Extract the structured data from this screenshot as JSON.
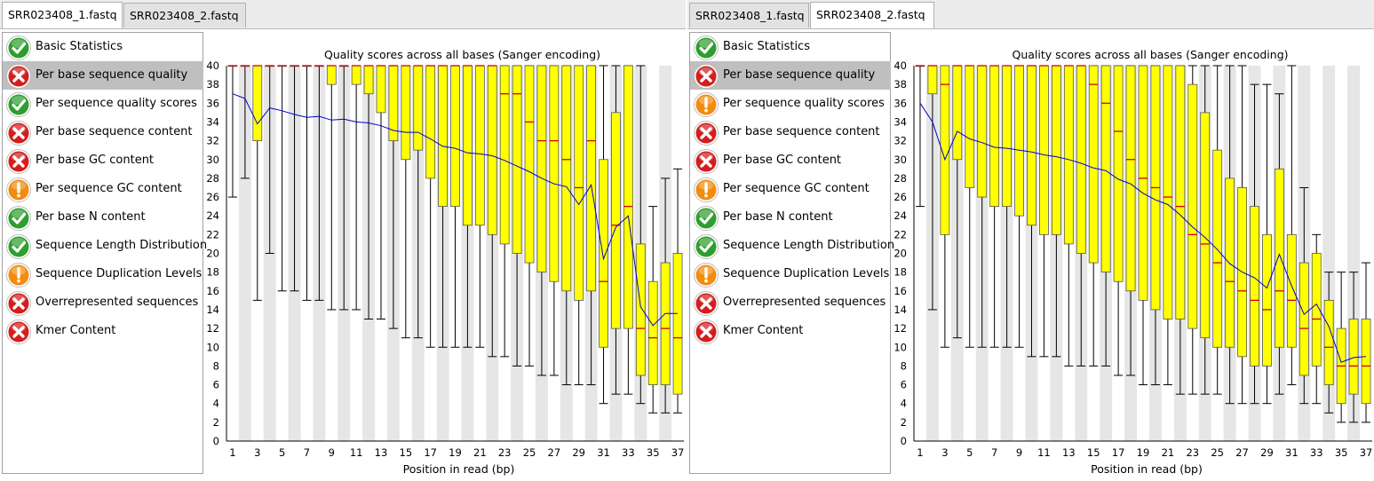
{
  "panels": [
    {
      "tabs": [
        {
          "label": "SRR023408_1.fastq",
          "active": true
        },
        {
          "label": "SRR023408_2.fastq",
          "active": false
        }
      ],
      "modules": [
        {
          "label": "Basic Statistics",
          "status": "pass",
          "selected": false
        },
        {
          "label": "Per base sequence quality",
          "status": "fail",
          "selected": true
        },
        {
          "label": "Per sequence quality scores",
          "status": "pass",
          "selected": false
        },
        {
          "label": "Per base sequence content",
          "status": "fail",
          "selected": false
        },
        {
          "label": "Per base GC content",
          "status": "fail",
          "selected": false
        },
        {
          "label": "Per sequence GC content",
          "status": "warn",
          "selected": false
        },
        {
          "label": "Per base N content",
          "status": "pass",
          "selected": false
        },
        {
          "label": "Sequence Length Distribution",
          "status": "pass",
          "selected": false
        },
        {
          "label": "Sequence Duplication Levels",
          "status": "warn",
          "selected": false
        },
        {
          "label": "Overrepresented sequences",
          "status": "fail",
          "selected": false
        },
        {
          "label": "Kmer Content",
          "status": "fail",
          "selected": false
        }
      ]
    },
    {
      "tabs": [
        {
          "label": "SRR023408_1.fastq",
          "active": false
        },
        {
          "label": "SRR023408_2.fastq",
          "active": true
        }
      ],
      "modules": [
        {
          "label": "Basic Statistics",
          "status": "pass",
          "selected": false
        },
        {
          "label": "Per base sequence quality",
          "status": "fail",
          "selected": true
        },
        {
          "label": "Per sequence quality scores",
          "status": "warn",
          "selected": false
        },
        {
          "label": "Per base sequence content",
          "status": "fail",
          "selected": false
        },
        {
          "label": "Per base GC content",
          "status": "fail",
          "selected": false
        },
        {
          "label": "Per sequence GC content",
          "status": "warn",
          "selected": false
        },
        {
          "label": "Per base N content",
          "status": "pass",
          "selected": false
        },
        {
          "label": "Sequence Length Distribution",
          "status": "pass",
          "selected": false
        },
        {
          "label": "Sequence Duplication Levels",
          "status": "warn",
          "selected": false
        },
        {
          "label": "Overrepresented sequences",
          "status": "fail",
          "selected": false
        },
        {
          "label": "Kmer Content",
          "status": "fail",
          "selected": false
        }
      ]
    }
  ],
  "status_colors": {
    "pass": "#2e9e2e",
    "fail": "#d41e1e",
    "warn": "#f28c0f"
  },
  "chart_colors": {
    "box": "#ffff00",
    "box_stroke": "#555555",
    "median": "#d40000",
    "mean": "#0000cc",
    "band": "#e6e6e6",
    "whisker": "#000000"
  },
  "chart_data": [
    {
      "type": "box",
      "title": "Quality scores across all bases (Sanger encoding)",
      "xlabel": "Position in read (bp)",
      "ylabel": "",
      "ylim": [
        0,
        40
      ],
      "yticks": [
        0,
        2,
        4,
        6,
        8,
        10,
        12,
        14,
        16,
        18,
        20,
        22,
        24,
        26,
        28,
        30,
        32,
        34,
        36,
        38,
        40
      ],
      "xticks": [
        1,
        3,
        5,
        7,
        9,
        11,
        13,
        15,
        17,
        19,
        21,
        23,
        25,
        27,
        29,
        31,
        33,
        35,
        37
      ],
      "positions": [
        1,
        2,
        3,
        4,
        5,
        6,
        7,
        8,
        9,
        10,
        11,
        12,
        13,
        14,
        15,
        16,
        17,
        18,
        19,
        20,
        21,
        22,
        23,
        24,
        25,
        26,
        27,
        28,
        29,
        30,
        31,
        32,
        33,
        34,
        35,
        36,
        37
      ],
      "q1": [
        40,
        40,
        32,
        40,
        40,
        40,
        40,
        40,
        38,
        40,
        38,
        37,
        35,
        32,
        30,
        31,
        28,
        25,
        25,
        23,
        23,
        22,
        21,
        20,
        19,
        18,
        17,
        16,
        15,
        16,
        10,
        12,
        12,
        7,
        6,
        6,
        5
      ],
      "q3": [
        40,
        40,
        40,
        40,
        40,
        40,
        40,
        40,
        40,
        40,
        40,
        40,
        40,
        40,
        40,
        40,
        40,
        40,
        40,
        40,
        40,
        40,
        40,
        40,
        40,
        40,
        40,
        40,
        40,
        40,
        30,
        35,
        40,
        21,
        17,
        19,
        20
      ],
      "median": [
        40,
        40,
        40,
        40,
        40,
        40,
        40,
        40,
        40,
        40,
        40,
        40,
        40,
        40,
        40,
        40,
        40,
        40,
        40,
        40,
        40,
        40,
        37,
        37,
        34,
        32,
        32,
        30,
        27,
        32,
        17,
        23,
        25,
        12,
        11,
        12,
        11
      ],
      "low": [
        26,
        28,
        15,
        20,
        16,
        16,
        15,
        15,
        14,
        14,
        14,
        13,
        13,
        12,
        11,
        11,
        10,
        10,
        10,
        10,
        10,
        9,
        9,
        8,
        8,
        7,
        7,
        6,
        6,
        6,
        4,
        5,
        5,
        4,
        3,
        3,
        3
      ],
      "high": [
        40,
        40,
        40,
        40,
        40,
        40,
        40,
        40,
        40,
        40,
        40,
        40,
        40,
        40,
        40,
        40,
        40,
        40,
        40,
        40,
        40,
        40,
        40,
        40,
        40,
        40,
        40,
        40,
        40,
        40,
        40,
        40,
        40,
        40,
        25,
        28,
        29
      ],
      "mean": [
        37,
        36.5,
        33.8,
        35.5,
        35.2,
        34.8,
        34.5,
        34.6,
        34.2,
        34.3,
        34.0,
        33.9,
        33.6,
        33.1,
        32.9,
        32.9,
        32.2,
        31.4,
        31.2,
        30.7,
        30.6,
        30.4,
        29.9,
        29.3,
        28.7,
        28.0,
        27.4,
        27.1,
        25.2,
        27.3,
        19.4,
        22.8,
        24.0,
        14.3,
        12.3,
        13.6,
        13.6
      ]
    },
    {
      "type": "box",
      "title": "Quality scores across all bases (Sanger encoding)",
      "xlabel": "Position in read (bp)",
      "ylabel": "",
      "ylim": [
        0,
        40
      ],
      "yticks": [
        0,
        2,
        4,
        6,
        8,
        10,
        12,
        14,
        16,
        18,
        20,
        22,
        24,
        26,
        28,
        30,
        32,
        34,
        36,
        38,
        40
      ],
      "xticks": [
        1,
        3,
        5,
        7,
        9,
        11,
        13,
        15,
        17,
        19,
        21,
        23,
        25,
        27,
        29,
        31,
        33,
        35,
        37
      ],
      "positions": [
        1,
        2,
        3,
        4,
        5,
        6,
        7,
        8,
        9,
        10,
        11,
        12,
        13,
        14,
        15,
        16,
        17,
        18,
        19,
        20,
        21,
        22,
        23,
        24,
        25,
        26,
        27,
        28,
        29,
        30,
        31,
        32,
        33,
        34,
        35,
        36,
        37
      ],
      "q1": [
        40,
        37,
        22,
        30,
        27,
        26,
        25,
        25,
        24,
        23,
        22,
        22,
        21,
        20,
        19,
        18,
        17,
        16,
        15,
        14,
        13,
        13,
        12,
        11,
        10,
        10,
        9,
        8,
        8,
        10,
        10,
        7,
        8,
        6,
        4,
        5,
        4
      ],
      "q3": [
        40,
        40,
        40,
        40,
        40,
        40,
        40,
        40,
        40,
        40,
        40,
        40,
        40,
        40,
        40,
        40,
        40,
        40,
        40,
        40,
        40,
        40,
        38,
        35,
        31,
        28,
        27,
        25,
        22,
        29,
        22,
        19,
        20,
        15,
        12,
        13,
        13
      ],
      "median": [
        40,
        40,
        38,
        40,
        40,
        40,
        40,
        40,
        40,
        40,
        40,
        40,
        40,
        40,
        38,
        36,
        33,
        30,
        28,
        27,
        26,
        25,
        22,
        21,
        19,
        17,
        16,
        15,
        14,
        16,
        15,
        12,
        13,
        10,
        8,
        8,
        8
      ],
      "low": [
        25,
        14,
        10,
        11,
        10,
        10,
        10,
        10,
        10,
        9,
        9,
        9,
        8,
        8,
        8,
        8,
        7,
        7,
        6,
        6,
        6,
        5,
        5,
        5,
        5,
        4,
        4,
        4,
        4,
        5,
        6,
        4,
        4,
        3,
        2,
        2,
        2
      ],
      "high": [
        40,
        40,
        40,
        40,
        40,
        40,
        40,
        40,
        40,
        40,
        40,
        40,
        40,
        40,
        40,
        40,
        40,
        40,
        40,
        40,
        40,
        40,
        40,
        40,
        40,
        40,
        40,
        38,
        38,
        37,
        40,
        27,
        22,
        18,
        18,
        18,
        19
      ],
      "mean": [
        36,
        34,
        30,
        33,
        32.2,
        31.8,
        31.3,
        31.2,
        31.0,
        30.8,
        30.5,
        30.3,
        30.0,
        29.6,
        29.1,
        28.8,
        27.9,
        27.4,
        26.4,
        25.7,
        25.2,
        24.1,
        22.8,
        21.7,
        20.4,
        18.9,
        18.0,
        17.4,
        16.3,
        19.9,
        16.5,
        13.5,
        14.6,
        12.2,
        8.4,
        8.9,
        9.0
      ]
    }
  ]
}
